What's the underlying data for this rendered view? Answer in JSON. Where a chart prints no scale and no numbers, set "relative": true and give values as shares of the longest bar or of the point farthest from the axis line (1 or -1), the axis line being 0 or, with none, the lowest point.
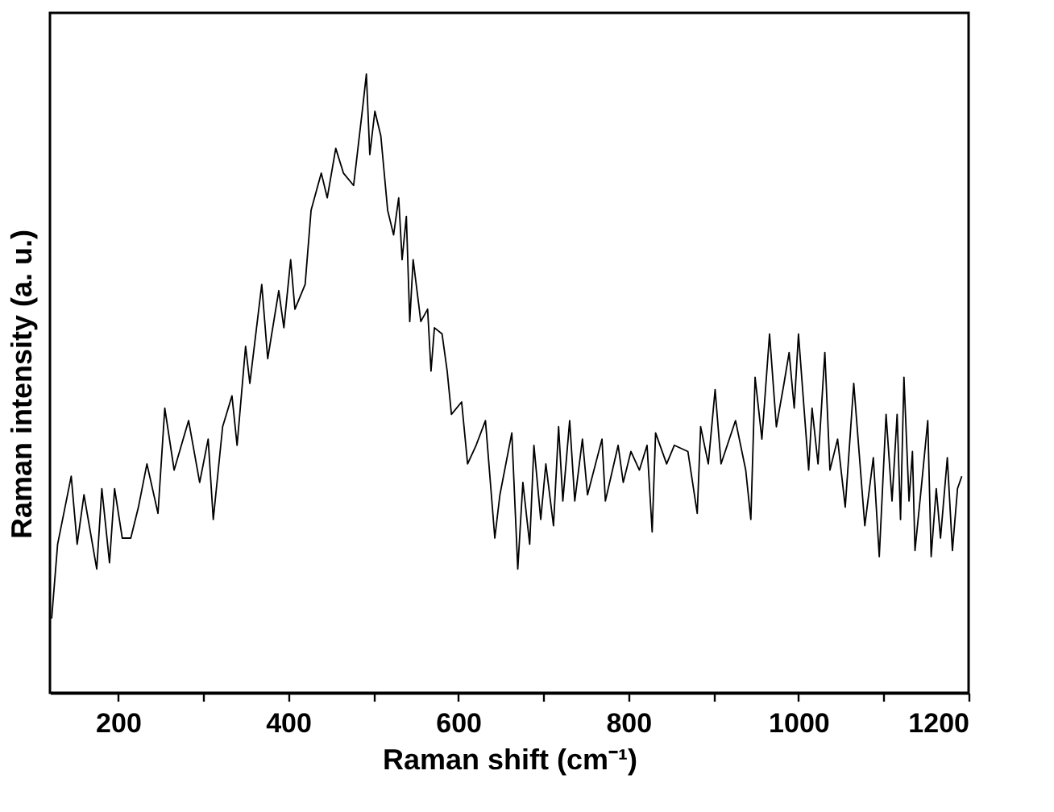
{
  "chart_data": {
    "type": "line",
    "relative": true,
    "xlabel": "Raman shift (cm⁻¹)",
    "ylabel": "Raman intensity (a. u.)",
    "xlim": [
      120,
      1200
    ],
    "xticks": [
      200,
      {
        "value": 300,
        "label": null
      },
      400,
      {
        "value": 500,
        "label": null
      },
      600,
      {
        "value": 700,
        "label": null
      },
      800,
      {
        "value": 900,
        "label": null
      },
      1000,
      {
        "value": 1100,
        "label": null
      },
      1200
    ],
    "x": [
      122,
      129,
      145,
      152,
      160,
      175,
      181,
      190,
      196,
      205,
      215,
      224,
      234,
      247,
      255,
      266,
      283,
      296,
      306,
      312,
      323,
      334,
      340,
      350,
      355,
      369,
      376,
      389,
      395,
      403,
      408,
      420,
      427,
      439,
      446,
      456,
      465,
      477,
      488,
      492,
      496,
      502,
      509,
      517,
      524,
      530,
      534,
      539,
      543,
      547,
      556,
      564,
      568,
      572,
      581,
      587,
      592,
      604,
      611,
      621,
      632,
      643,
      649,
      663,
      670,
      676,
      684,
      689,
      697,
      703,
      712,
      718,
      723,
      731,
      737,
      746,
      752,
      769,
      773,
      788,
      794,
      803,
      813,
      822,
      828,
      832,
      845,
      854,
      870,
      881,
      885,
      894,
      902,
      909,
      926,
      938,
      944,
      949,
      957,
      966,
      974,
      983,
      989,
      995,
      1000,
      1012,
      1016,
      1023,
      1031,
      1037,
      1046,
      1055,
      1065,
      1078,
      1088,
      1095,
      1103,
      1110,
      1116,
      1120,
      1124,
      1130,
      1134,
      1137,
      1145,
      1152,
      1156,
      1162,
      1167,
      1175,
      1181,
      1187,
      1192
    ],
    "series": [
      {
        "color": "#000000",
        "values": [
          0.12,
          0.24,
          0.35,
          0.24,
          0.32,
          0.2,
          0.33,
          0.21,
          0.33,
          0.25,
          0.25,
          0.3,
          0.37,
          0.29,
          0.46,
          0.36,
          0.44,
          0.34,
          0.41,
          0.28,
          0.43,
          0.48,
          0.4,
          0.56,
          0.5,
          0.66,
          0.54,
          0.65,
          0.59,
          0.7,
          0.62,
          0.66,
          0.78,
          0.84,
          0.8,
          0.88,
          0.84,
          0.82,
          0.95,
          1.0,
          0.87,
          0.94,
          0.9,
          0.78,
          0.74,
          0.8,
          0.7,
          0.77,
          0.6,
          0.7,
          0.6,
          0.62,
          0.52,
          0.59,
          0.58,
          0.52,
          0.45,
          0.47,
          0.37,
          0.4,
          0.44,
          0.25,
          0.32,
          0.42,
          0.2,
          0.34,
          0.24,
          0.4,
          0.28,
          0.37,
          0.27,
          0.43,
          0.31,
          0.44,
          0.31,
          0.41,
          0.32,
          0.41,
          0.31,
          0.4,
          0.34,
          0.39,
          0.36,
          0.4,
          0.26,
          0.42,
          0.37,
          0.4,
          0.39,
          0.29,
          0.43,
          0.37,
          0.49,
          0.37,
          0.44,
          0.36,
          0.28,
          0.51,
          0.41,
          0.58,
          0.43,
          0.5,
          0.55,
          0.46,
          0.58,
          0.36,
          0.46,
          0.37,
          0.55,
          0.36,
          0.41,
          0.3,
          0.5,
          0.27,
          0.38,
          0.22,
          0.45,
          0.31,
          0.45,
          0.28,
          0.51,
          0.31,
          0.39,
          0.23,
          0.34,
          0.44,
          0.22,
          0.33,
          0.25,
          0.38,
          0.23,
          0.33,
          0.35
        ]
      }
    ]
  }
}
